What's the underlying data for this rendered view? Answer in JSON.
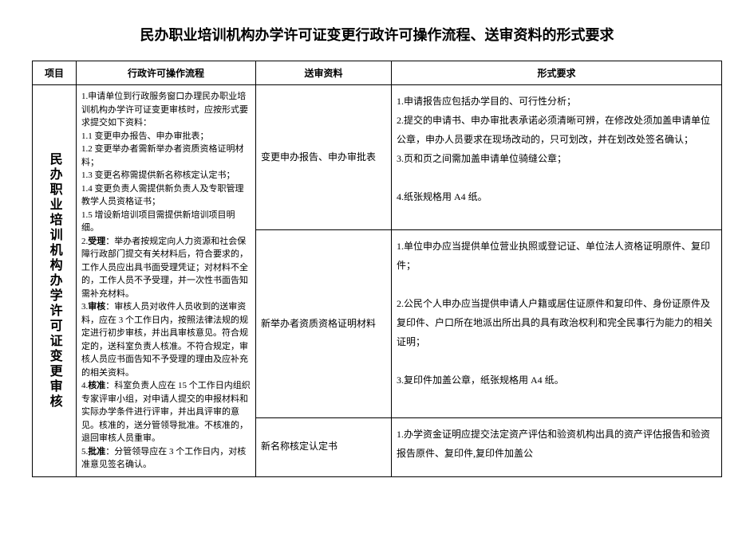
{
  "title": "民办职业培训机构办学许可证变更行政许可操作流程、送审资料的形式要求",
  "headers": {
    "project": "项目",
    "process": "行政许可操作流程",
    "material": "送审资料",
    "format": "形式要求"
  },
  "projectLabel": "民办职业培训机构办学许可证变更审核",
  "process": {
    "p1": "1.申请单位到行政服务窗口办理民办职业培训机构办学许可证变更审核时，应按形式要求提交如下资料：",
    "p1_1": "1.1 变更申办报告、申办审批表；",
    "p1_2": "1.2 变更举办者需新举办者资质资格证明材料；",
    "p1_3": "1.3 变更名称需提供新名称核定认定书；",
    "p1_4": "1.4 变更负责人需提供新负责人及专职管理教学人员资格证书；",
    "p1_5": "1.5 增设新培训项目需提供新培训项目明细。",
    "p2a": "2.",
    "p2b": "受理",
    "p2c": "：举办者按规定向人力资源和社会保障行政部门提交有关材料后，符合要求的，工作人员应出具书面受理凭证；对材料不全的，工作人员不予受理，并一次性书面告知需补充材料。",
    "p3a": "3.",
    "p3b": "审核",
    "p3c": "：审核人员对收件人员收到的送审资料，应在 3 个工作日内，按照法律法规的规定进行初步审核，并出具审核意见。符合规定的，送科室负责人核准。不符合规定，审核人员应书面告知不予受理的理由及应补充的相关资料。",
    "p4a": "4.",
    "p4b": "核准",
    "p4c": "：科室负责人应在 15 个工作日内组织专家评审小组，对申请人提交的申报材料和实际办学条件进行评审，并出具评审的意见。核准的，送分管领导批准。不核准的，退回审核人员重审。",
    "p5a": "5.",
    "p5b": "批准",
    "p5c": "：分管领导应在 3 个工作日内，对核准意见签名确认。"
  },
  "material": {
    "r1": "变更申办报告、申办审批表",
    "r2": "新举办者资质资格证明材料",
    "r3": "新名称核定认定书"
  },
  "format": {
    "r1_1": "1.申请报告应包括办学目的、可行性分析；",
    "r1_2": "2.提交的申请书、申办审批表承诺必须清晰可辨，在修改处须加盖申请单位公章，申办人员要求在现场改动的，只可划改，并在划改处签名确认；",
    "r1_3": "3.页和页之间需加盖申请单位骑缝公章；",
    "r1_4": "4.纸张规格用 A4 纸。",
    "r2_1": "1.单位申办应当提供单位营业执照或登记证、单位法人资格证明原件、复印件；",
    "r2_2": "2.公民个人申办应当提供申请人户籍或居住证原件和复印件、身份证原件及复印件、户口所在地派出所出具的具有政治权利和完全民事行为能力的相关证明；",
    "r2_3": "3.复印件加盖公章，纸张规格用 A4 纸。",
    "r3_1": "1.办学资金证明应提交法定资产评估和验资机构出具的资产评估报告和验资报告原件、复印件,复印件加盖公"
  }
}
